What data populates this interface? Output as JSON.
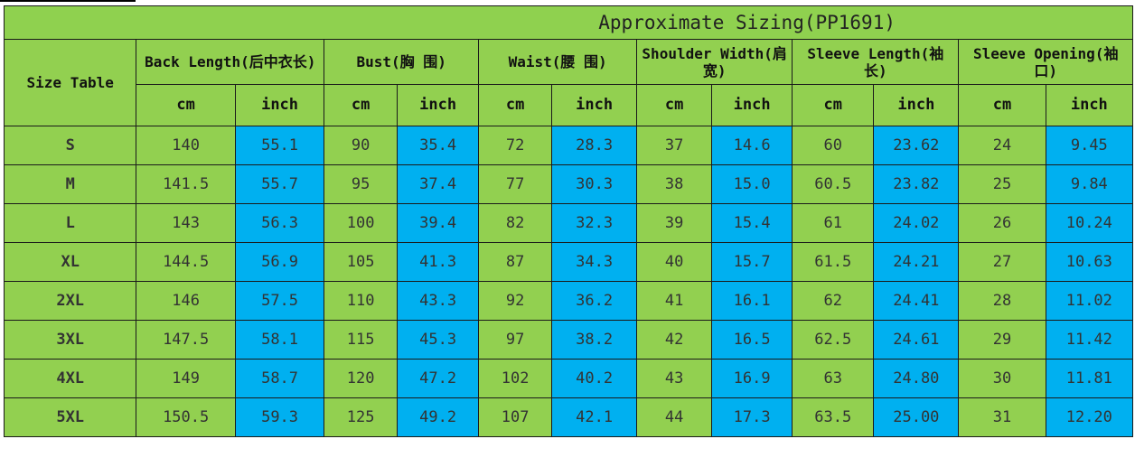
{
  "title": "Approximate Sizing(PP1691)",
  "size_table_label": "Size Table",
  "measurements": [
    {
      "label": "Back Length(后中衣长)"
    },
    {
      "label": "Bust(胸 围)"
    },
    {
      "label": "Waist(腰 围)"
    },
    {
      "label": "Shoulder Width(肩宽)"
    },
    {
      "label": "Sleeve Length(袖 长)"
    },
    {
      "label": "Sleeve Opening(袖 口)"
    }
  ],
  "units": {
    "cm": "cm",
    "inch": "inch"
  },
  "rows": [
    {
      "size": "S",
      "values": [
        "140",
        "55.1",
        "90",
        "35.4",
        "72",
        "28.3",
        "37",
        "14.6",
        "60",
        "23.62",
        "24",
        "9.45"
      ]
    },
    {
      "size": "M",
      "values": [
        "141.5",
        "55.7",
        "95",
        "37.4",
        "77",
        "30.3",
        "38",
        "15.0",
        "60.5",
        "23.82",
        "25",
        "9.84"
      ]
    },
    {
      "size": "L",
      "values": [
        "143",
        "56.3",
        "100",
        "39.4",
        "82",
        "32.3",
        "39",
        "15.4",
        "61",
        "24.02",
        "26",
        "10.24"
      ]
    },
    {
      "size": "XL",
      "values": [
        "144.5",
        "56.9",
        "105",
        "41.3",
        "87",
        "34.3",
        "40",
        "15.7",
        "61.5",
        "24.21",
        "27",
        "10.63"
      ]
    },
    {
      "size": "2XL",
      "values": [
        "146",
        "57.5",
        "110",
        "43.3",
        "92",
        "36.2",
        "41",
        "16.1",
        "62",
        "24.41",
        "28",
        "11.02"
      ]
    },
    {
      "size": "3XL",
      "values": [
        "147.5",
        "58.1",
        "115",
        "45.3",
        "97",
        "38.2",
        "42",
        "16.5",
        "62.5",
        "24.61",
        "29",
        "11.42"
      ]
    },
    {
      "size": "4XL",
      "values": [
        "149",
        "58.7",
        "120",
        "47.2",
        "102",
        "40.2",
        "43",
        "16.9",
        "63",
        "24.80",
        "30",
        "11.81"
      ]
    },
    {
      "size": "5XL",
      "values": [
        "150.5",
        "59.3",
        "125",
        "49.2",
        "107",
        "42.1",
        "44",
        "17.3",
        "63.5",
        "25.00",
        "31",
        "12.20"
      ]
    }
  ],
  "colors": {
    "cm_cell": "#92d050",
    "inch_cell": "#00b0f0",
    "header": "#92d050"
  }
}
